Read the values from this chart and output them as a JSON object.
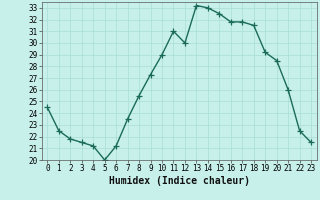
{
  "x": [
    0,
    1,
    2,
    3,
    4,
    5,
    6,
    7,
    8,
    9,
    10,
    11,
    12,
    13,
    14,
    15,
    16,
    17,
    18,
    19,
    20,
    21,
    22,
    23
  ],
  "y": [
    24.5,
    22.5,
    21.8,
    21.5,
    21.2,
    20.0,
    21.2,
    23.5,
    25.5,
    27.3,
    29.0,
    31.0,
    30.0,
    33.2,
    33.0,
    32.5,
    31.8,
    31.8,
    31.5,
    29.2,
    28.5,
    26.0,
    22.5,
    21.5
  ],
  "line_color": "#1a6b5a",
  "marker": "+",
  "markersize": 4,
  "linewidth": 1.0,
  "bg_color": "#c8f0eb",
  "grid_color": "#a8ddd6",
  "xlabel": "Humidex (Indice chaleur)",
  "xlim": [
    -0.5,
    23.5
  ],
  "ylim": [
    20,
    33.5
  ],
  "yticks": [
    20,
    21,
    22,
    23,
    24,
    25,
    26,
    27,
    28,
    29,
    30,
    31,
    32,
    33
  ],
  "xticks": [
    0,
    1,
    2,
    3,
    4,
    5,
    6,
    7,
    8,
    9,
    10,
    11,
    12,
    13,
    14,
    15,
    16,
    17,
    18,
    19,
    20,
    21,
    22,
    23
  ],
  "tick_labelsize": 5.5,
  "xlabel_fontsize": 7.0
}
